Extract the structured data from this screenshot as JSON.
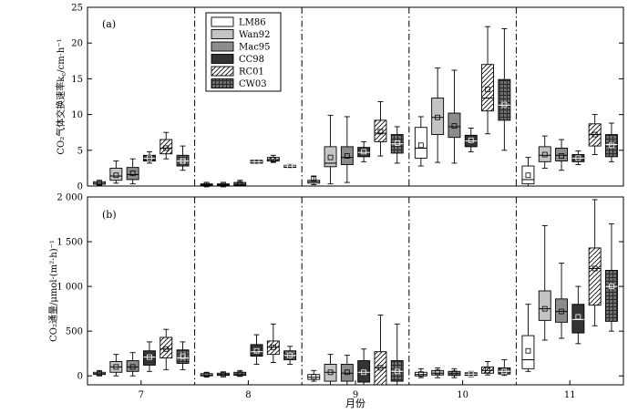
{
  "chart_data": [
    {
      "type": "box",
      "panel_label": "(a)",
      "ylabel": "CO₂气体交换速率k",
      "ylabel_sub": "c",
      "ylabel_unit": "/cm·h⁻¹",
      "ylim": [
        0,
        25
      ],
      "yticks": [
        0,
        5,
        10,
        15,
        20,
        25
      ],
      "ytick_labels": [
        "0",
        "5",
        "10",
        "15",
        "20",
        "25"
      ],
      "legend_position": "top-center",
      "categories": [
        "7",
        "8",
        "9",
        "10",
        "11"
      ],
      "series": [
        {
          "name": "LM86",
          "boxes": [
            {
              "min": 0.1,
              "q1": 0.25,
              "median": 0.4,
              "q3": 0.6,
              "max": 0.8,
              "mean": 0.45
            },
            {
              "min": 0.0,
              "q1": 0.1,
              "median": 0.2,
              "q3": 0.3,
              "max": 0.5,
              "mean": 0.2
            },
            {
              "min": 0.2,
              "q1": 0.4,
              "median": 0.6,
              "q3": 0.8,
              "max": 1.4,
              "mean": 1.0
            },
            {
              "min": 2.8,
              "q1": 3.9,
              "median": 5.3,
              "q3": 8.2,
              "max": 9.7,
              "mean": 5.7
            },
            {
              "min": 0.0,
              "q1": 0.3,
              "median": 0.9,
              "q3": 2.8,
              "max": 4.0,
              "mean": 1.5
            }
          ]
        },
        {
          "name": "Wan92",
          "boxes": [
            {
              "min": 0.4,
              "q1": 0.8,
              "median": 1.4,
              "q3": 2.5,
              "max": 3.5,
              "mean": 1.5
            },
            {
              "min": 0.0,
              "q1": 0.1,
              "median": 0.2,
              "q3": 0.3,
              "max": 0.5,
              "mean": 0.2
            },
            {
              "min": 0.3,
              "q1": 2.7,
              "median": 3.2,
              "q3": 5.5,
              "max": 9.9,
              "mean": 4.0
            },
            {
              "min": 3.3,
              "q1": 7.2,
              "median": 9.6,
              "q3": 12.3,
              "max": 16.5,
              "mean": 9.6
            },
            {
              "min": 2.5,
              "q1": 3.4,
              "median": 4.3,
              "q3": 5.5,
              "max": 7.0,
              "mean": 4.4
            }
          ]
        },
        {
          "name": "Mac95",
          "boxes": [
            {
              "min": 0.3,
              "q1": 0.9,
              "median": 1.6,
              "q3": 2.6,
              "max": 3.8,
              "mean": 1.8
            },
            {
              "min": 0.0,
              "q1": 0.1,
              "median": 0.25,
              "q3": 0.5,
              "max": 0.8,
              "mean": 0.3
            },
            {
              "min": 0.5,
              "q1": 3.0,
              "median": 4.0,
              "q3": 5.5,
              "max": 9.7,
              "mean": 4.2
            },
            {
              "min": 3.2,
              "q1": 6.8,
              "median": 8.3,
              "q3": 10.2,
              "max": 16.2,
              "mean": 8.4
            },
            {
              "min": 2.2,
              "q1": 3.5,
              "median": 4.3,
              "q3": 5.3,
              "max": 6.5,
              "mean": 4.2
            }
          ]
        },
        {
          "name": "CC98",
          "boxes": [
            {
              "min": 3.2,
              "q1": 3.5,
              "median": 3.9,
              "q3": 4.3,
              "max": 4.8,
              "mean": 3.9
            },
            {
              "min": 3.1,
              "q1": 3.2,
              "median": 3.4,
              "q3": 3.6,
              "max": 3.7,
              "mean": 3.4
            },
            {
              "min": 3.4,
              "q1": 4.1,
              "median": 4.7,
              "q3": 5.4,
              "max": 6.2,
              "mean": 4.8
            },
            {
              "min": 4.8,
              "q1": 5.5,
              "median": 6.3,
              "q3": 7.1,
              "max": 8.1,
              "mean": 6.4
            },
            {
              "min": 3.0,
              "q1": 3.4,
              "median": 3.9,
              "q3": 4.4,
              "max": 4.9,
              "mean": 3.9
            }
          ]
        },
        {
          "name": "RC01",
          "boxes": [
            {
              "min": 3.8,
              "q1": 4.5,
              "median": 5.3,
              "q3": 6.5,
              "max": 7.5,
              "mean": 5.3
            },
            {
              "min": 3.3,
              "q1": 3.5,
              "median": 3.7,
              "q3": 4.0,
              "max": 4.3,
              "mean": 3.7
            },
            {
              "min": 4.2,
              "q1": 6.2,
              "median": 7.4,
              "q3": 9.2,
              "max": 11.8,
              "mean": 7.6
            },
            {
              "min": 7.3,
              "q1": 10.5,
              "median": 12.3,
              "q3": 17.0,
              "max": 22.3,
              "mean": 13.5
            },
            {
              "min": 4.4,
              "q1": 5.6,
              "median": 7.2,
              "q3": 8.7,
              "max": 10.0,
              "mean": 7.2
            }
          ]
        },
        {
          "name": "CW03",
          "boxes": [
            {
              "min": 2.2,
              "q1": 2.8,
              "median": 3.5,
              "q3": 4.3,
              "max": 5.6,
              "mean": 3.5
            },
            {
              "min": 2.5,
              "q1": 2.6,
              "median": 2.8,
              "q3": 2.9,
              "max": 3.1,
              "mean": 2.8
            },
            {
              "min": 3.2,
              "q1": 4.6,
              "median": 5.9,
              "q3": 7.2,
              "max": 8.3,
              "mean": 6.0
            },
            {
              "min": 5.0,
              "q1": 9.2,
              "median": 11.3,
              "q3": 14.9,
              "max": 22.0,
              "mean": 11.4
            },
            {
              "min": 3.4,
              "q1": 4.1,
              "median": 5.8,
              "q3": 7.2,
              "max": 8.8,
              "mean": 5.7
            }
          ]
        }
      ]
    },
    {
      "type": "box",
      "panel_label": "(b)",
      "ylabel": "CO₂通量/μmol·(m²·h)⁻¹",
      "ylim": [
        -100,
        2000
      ],
      "yticks": [
        0,
        500,
        1000,
        1500,
        2000
      ],
      "ytick_labels": [
        "0",
        "500",
        "1 000",
        "1 500",
        "2 000"
      ],
      "xlabel": "月份",
      "categories": [
        "7",
        "8",
        "9",
        "10",
        "11"
      ],
      "series": [
        {
          "name": "LM86",
          "boxes": [
            {
              "min": 5,
              "q1": 15,
              "median": 25,
              "q3": 40,
              "max": 60,
              "mean": 25
            },
            {
              "min": -10,
              "q1": 0,
              "median": 10,
              "q3": 25,
              "max": 40,
              "mean": 12
            },
            {
              "min": -60,
              "q1": -40,
              "median": -15,
              "q3": 15,
              "max": 60,
              "mean": -10
            },
            {
              "min": -20,
              "q1": 0,
              "median": 15,
              "q3": 40,
              "max": 80,
              "mean": 20
            },
            {
              "min": 50,
              "q1": 80,
              "median": 180,
              "q3": 450,
              "max": 800,
              "mean": 280
            }
          ]
        },
        {
          "name": "Wan92",
          "boxes": [
            {
              "min": 0,
              "q1": 40,
              "median": 100,
              "q3": 160,
              "max": 240,
              "mean": 100
            },
            {
              "min": -10,
              "q1": 5,
              "median": 15,
              "q3": 30,
              "max": 45,
              "mean": 15
            },
            {
              "min": -100,
              "q1": -60,
              "median": 40,
              "q3": 130,
              "max": 240,
              "mean": 40
            },
            {
              "min": -20,
              "q1": 10,
              "median": 30,
              "q3": 60,
              "max": 90,
              "mean": 40
            },
            {
              "min": 400,
              "q1": 620,
              "median": 750,
              "q3": 950,
              "max": 1680,
              "mean": 750
            }
          ]
        },
        {
          "name": "Mac95",
          "boxes": [
            {
              "min": 0,
              "q1": 50,
              "median": 100,
              "q3": 170,
              "max": 260,
              "mean": 100
            },
            {
              "min": -5,
              "q1": 5,
              "median": 20,
              "q3": 40,
              "max": 60,
              "mean": 20
            },
            {
              "min": -100,
              "q1": -60,
              "median": 30,
              "q3": 130,
              "max": 230,
              "mean": 40
            },
            {
              "min": -20,
              "q1": 5,
              "median": 25,
              "q3": 50,
              "max": 80,
              "mean": 30
            },
            {
              "min": 420,
              "q1": 600,
              "median": 720,
              "q3": 860,
              "max": 1260,
              "mean": 720
            }
          ]
        },
        {
          "name": "CC98",
          "boxes": [
            {
              "min": 50,
              "q1": 120,
              "median": 210,
              "q3": 280,
              "max": 380,
              "mean": 210
            },
            {
              "min": 130,
              "q1": 220,
              "median": 270,
              "q3": 350,
              "max": 460,
              "mean": 280
            },
            {
              "min": -100,
              "q1": -70,
              "median": 40,
              "q3": 170,
              "max": 300,
              "mean": 40
            },
            {
              "min": -10,
              "q1": 5,
              "median": 20,
              "q3": 35,
              "max": 50,
              "mean": 20
            },
            {
              "min": 360,
              "q1": 480,
              "median": 630,
              "q3": 800,
              "max": 1000,
              "mean": 660
            }
          ]
        },
        {
          "name": "RC01",
          "boxes": [
            {
              "min": 70,
              "q1": 200,
              "median": 300,
              "q3": 430,
              "max": 520,
              "mean": 300
            },
            {
              "min": 150,
              "q1": 240,
              "median": 320,
              "q3": 390,
              "max": 580,
              "mean": 320
            },
            {
              "min": -100,
              "q1": -100,
              "median": 90,
              "q3": 270,
              "max": 680,
              "mean": 90
            },
            {
              "min": 10,
              "q1": 30,
              "median": 60,
              "q3": 100,
              "max": 160,
              "mean": 60
            },
            {
              "min": 560,
              "q1": 790,
              "median": 1200,
              "q3": 1430,
              "max": 1970,
              "mean": 1200
            }
          ]
        },
        {
          "name": "CW03",
          "boxes": [
            {
              "min": 70,
              "q1": 140,
              "median": 200,
              "q3": 290,
              "max": 380,
              "mean": 220
            },
            {
              "min": 130,
              "q1": 180,
              "median": 230,
              "q3": 280,
              "max": 330,
              "mean": 230
            },
            {
              "min": -100,
              "q1": -60,
              "median": 50,
              "q3": 170,
              "max": 580,
              "mean": 50
            },
            {
              "min": 5,
              "q1": 20,
              "median": 50,
              "q3": 90,
              "max": 180,
              "mean": 50
            },
            {
              "min": 500,
              "q1": 610,
              "median": 1000,
              "q3": 1180,
              "max": 1700,
              "mean": 1000
            }
          ]
        }
      ]
    }
  ],
  "style": {
    "fills": {
      "LM86": "#ffffff",
      "Wan92": "#c4c4c4",
      "Mac95": "#8c8c8c",
      "CC98": "#333333",
      "RC01": "hatch",
      "CW03": "grid"
    },
    "stroke": "#000000",
    "separator": "dash-dot"
  }
}
